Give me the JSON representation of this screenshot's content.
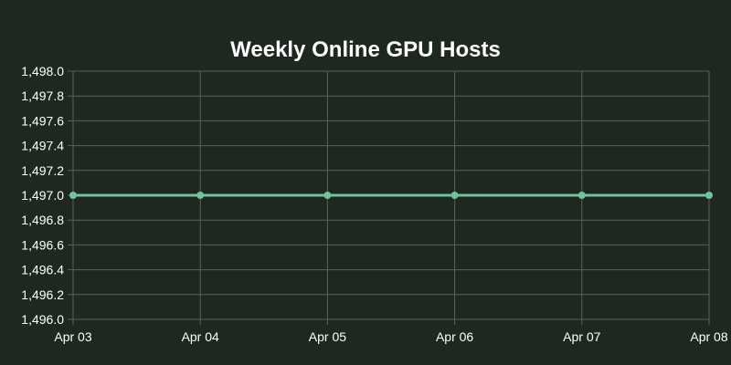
{
  "chart_data": {
    "type": "line",
    "title": "Weekly Online GPU Hosts",
    "xlabel": "",
    "ylabel": "",
    "categories": [
      "Apr 03",
      "Apr 04",
      "Apr 05",
      "Apr 06",
      "Apr 07",
      "Apr 08"
    ],
    "series": [
      {
        "values": [
          1497,
          1497,
          1497,
          1497,
          1497,
          1497
        ],
        "color": "#6fc49c"
      }
    ],
    "ylim": [
      1496.0,
      1498.0
    ],
    "yticks": [
      "1,496.0",
      "1,496.2",
      "1,496.4",
      "1,496.6",
      "1,496.8",
      "1,497.0",
      "1,497.2",
      "1,497.4",
      "1,497.6",
      "1,497.8",
      "1,498.0"
    ],
    "grid": true,
    "legend": "none",
    "colors": {
      "background": "#1f2820",
      "grid": "#5a625a",
      "text": "#ffffff"
    }
  }
}
